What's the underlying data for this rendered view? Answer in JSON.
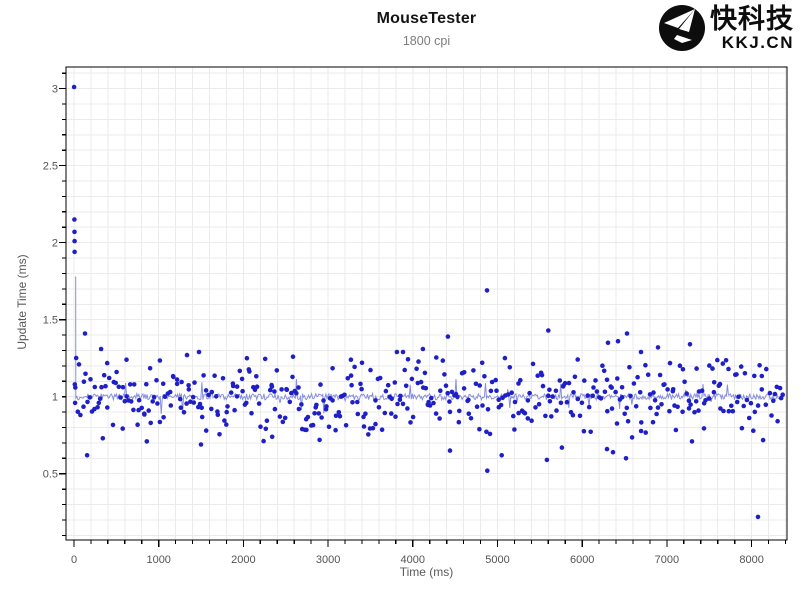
{
  "header": {
    "title": "MouseTester",
    "subtitle": "1800 cpi"
  },
  "logo": {
    "brand_cn": "快科技",
    "brand_domain": "KKJ.CN"
  },
  "chart_data": {
    "type": "scatter",
    "title": "MouseTester",
    "subtitle": "1800 cpi",
    "xlabel": "Time (ms)",
    "ylabel": "Update Time (ms)",
    "xlim": [
      -94,
      8418
    ],
    "ylim": [
      0.07,
      3.14
    ],
    "x_major_ticks": [
      0,
      1000,
      2000,
      3000,
      4000,
      5000,
      6000,
      7000,
      8000
    ],
    "x_minor_step": 200,
    "y_major_ticks": [
      0.5,
      1,
      1.5,
      2,
      2.5,
      3
    ],
    "y_minor_step": 0.1,
    "grid": {
      "show": true,
      "at": "minor-ticks"
    },
    "legend": "none",
    "colors": {
      "point": "#1f1fc8",
      "line": "#8890dd",
      "grid": "#ebebeb",
      "axis": "#000000",
      "tick_text": "#555555"
    },
    "point_radius": 2.3,
    "baseline_y": 1.0,
    "band": {
      "description": "dense noise band of polling update times centered on 1 ms",
      "x_start": 30,
      "x_end": 8370,
      "n_points": 430,
      "y_mean": 1.0,
      "y_typical_spread": [
        0.85,
        1.18
      ],
      "y_max_dev": 0.35,
      "seed": 1234
    },
    "line_jitter": {
      "step_ms": 12,
      "jitter": 0.02,
      "spike_chance": 0.05,
      "spike_max": 0.13,
      "seed": 99
    },
    "start_spike": {
      "x": 20,
      "y_top": 1.78
    },
    "early_points": [
      [
        2,
        3.01
      ],
      [
        5,
        2.15
      ],
      [
        6,
        2.07
      ],
      [
        7,
        2.01
      ],
      [
        8,
        1.94
      ],
      [
        10,
        1.08
      ],
      [
        13,
        0.96
      ],
      [
        16,
        1.06
      ]
    ],
    "outlier_points": [
      [
        59,
        1.21
      ],
      [
        130,
        1.41
      ],
      [
        155,
        0.62
      ],
      [
        320,
        1.31
      ],
      [
        340,
        0.73
      ],
      [
        620,
        1.24
      ],
      [
        860,
        0.71
      ],
      [
        1334,
        1.27
      ],
      [
        1476,
        1.29
      ],
      [
        1500,
        0.69
      ],
      [
        2042,
        1.25
      ],
      [
        2340,
        0.74
      ],
      [
        2586,
        1.26
      ],
      [
        2900,
        0.72
      ],
      [
        3270,
        1.24
      ],
      [
        3400,
        1.22
      ],
      [
        3813,
        1.29
      ],
      [
        3884,
        1.29
      ],
      [
        4120,
        1.31
      ],
      [
        4415,
        1.39
      ],
      [
        4439,
        0.65
      ],
      [
        4876,
        1.69
      ],
      [
        4880,
        0.52
      ],
      [
        5050,
        0.62
      ],
      [
        5584,
        0.59
      ],
      [
        5600,
        1.43
      ],
      [
        5761,
        0.67
      ],
      [
        6293,
        0.66
      ],
      [
        6305,
        1.35
      ],
      [
        6364,
        0.64
      ],
      [
        6423,
        1.36
      ],
      [
        6517,
        0.6
      ],
      [
        6529,
        1.41
      ],
      [
        6694,
        1.29
      ],
      [
        6895,
        1.32
      ],
      [
        7273,
        1.34
      ],
      [
        7296,
        0.71
      ],
      [
        8076,
        0.22
      ]
    ]
  }
}
